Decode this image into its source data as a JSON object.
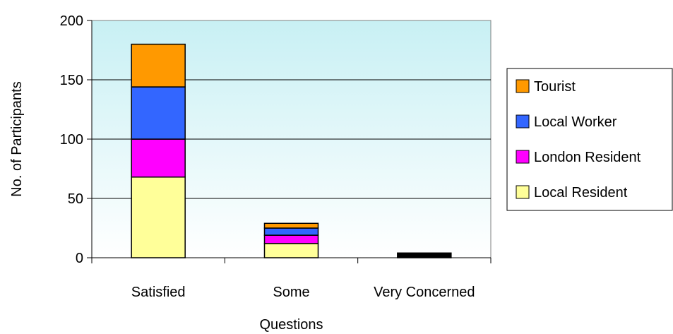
{
  "chart_data": {
    "type": "bar",
    "stacked": true,
    "title": "",
    "xlabel": "",
    "ylabel": "No. of Participants",
    "categories": [
      "Satisfied",
      "Some Questions",
      "Very Concerned"
    ],
    "ylim": [
      0,
      200
    ],
    "yticks": [
      0,
      50,
      100,
      150,
      200
    ],
    "grid": true,
    "legend_position": "right",
    "plot_background": "gradient light blue",
    "series": [
      {
        "name": "Local Resident",
        "color": "#FFFF99",
        "values": [
          68,
          12,
          0
        ]
      },
      {
        "name": "London Resident",
        "color": "#FF00FF",
        "values": [
          32,
          7,
          0
        ]
      },
      {
        "name": "Local Worker",
        "color": "#3366FF",
        "values": [
          44,
          6,
          0
        ]
      },
      {
        "name": "Tourist",
        "color": "#FF9900",
        "values": [
          36,
          4,
          4
        ]
      }
    ]
  }
}
